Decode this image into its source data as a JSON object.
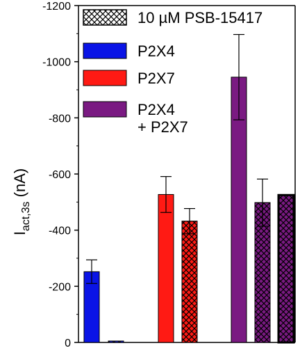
{
  "chart_data": {
    "type": "bar",
    "title": "",
    "xlabel": "",
    "ylabel": {
      "main": "I",
      "sub": "act,3s",
      "unit": " (nA)"
    },
    "ylim": [
      0,
      -1200
    ],
    "yticks": [
      0,
      -200,
      -400,
      -600,
      -800,
      -1000,
      -1200
    ],
    "ytick_labels": [
      "0",
      "-200",
      "-400",
      "-600",
      "-800",
      "-1000",
      "-1200"
    ],
    "grid": false,
    "legend_position": "top-right",
    "legend": [
      {
        "label": "10 µM PSB-15417",
        "pattern": "crosshatch",
        "color": "#ffffff"
      },
      {
        "label": "P2X4",
        "color": "#0a14e6"
      },
      {
        "label": "P2X7",
        "color": "#ff1a14"
      },
      {
        "label": "P2X4",
        "label_line2": "+ P2X7",
        "color": "#7a1a82"
      }
    ],
    "bars": [
      {
        "receptor": "P2X4",
        "treatment": "control",
        "value": -252,
        "error": 42,
        "color": "#0a14e6",
        "hatched": false
      },
      {
        "receptor": "P2X4",
        "treatment": "PSB-15417",
        "value": -5,
        "error": 0,
        "color": "#0a14e6",
        "hatched": true
      },
      {
        "receptor": "P2X7",
        "treatment": "control",
        "value": -527,
        "error": 64,
        "color": "#ff1a14",
        "hatched": false
      },
      {
        "receptor": "P2X7",
        "treatment": "PSB-15417",
        "value": -432,
        "error": 45,
        "color": "#ff1a14",
        "hatched": true
      },
      {
        "receptor": "P2X4 + P2X7",
        "treatment": "control",
        "value": -945,
        "error": 152,
        "color": "#7a1a82",
        "hatched": false
      },
      {
        "receptor": "P2X4 + P2X7",
        "treatment": "PSB-15417",
        "value": -498,
        "error": 84,
        "color": "#7a1a82",
        "hatched": true
      },
      {
        "receptor": "P2X4 + P2X7",
        "treatment": "PSB-15417",
        "value": -525,
        "error": 0,
        "color": "#7a1a82",
        "hatched": true,
        "outlined": true
      }
    ]
  }
}
